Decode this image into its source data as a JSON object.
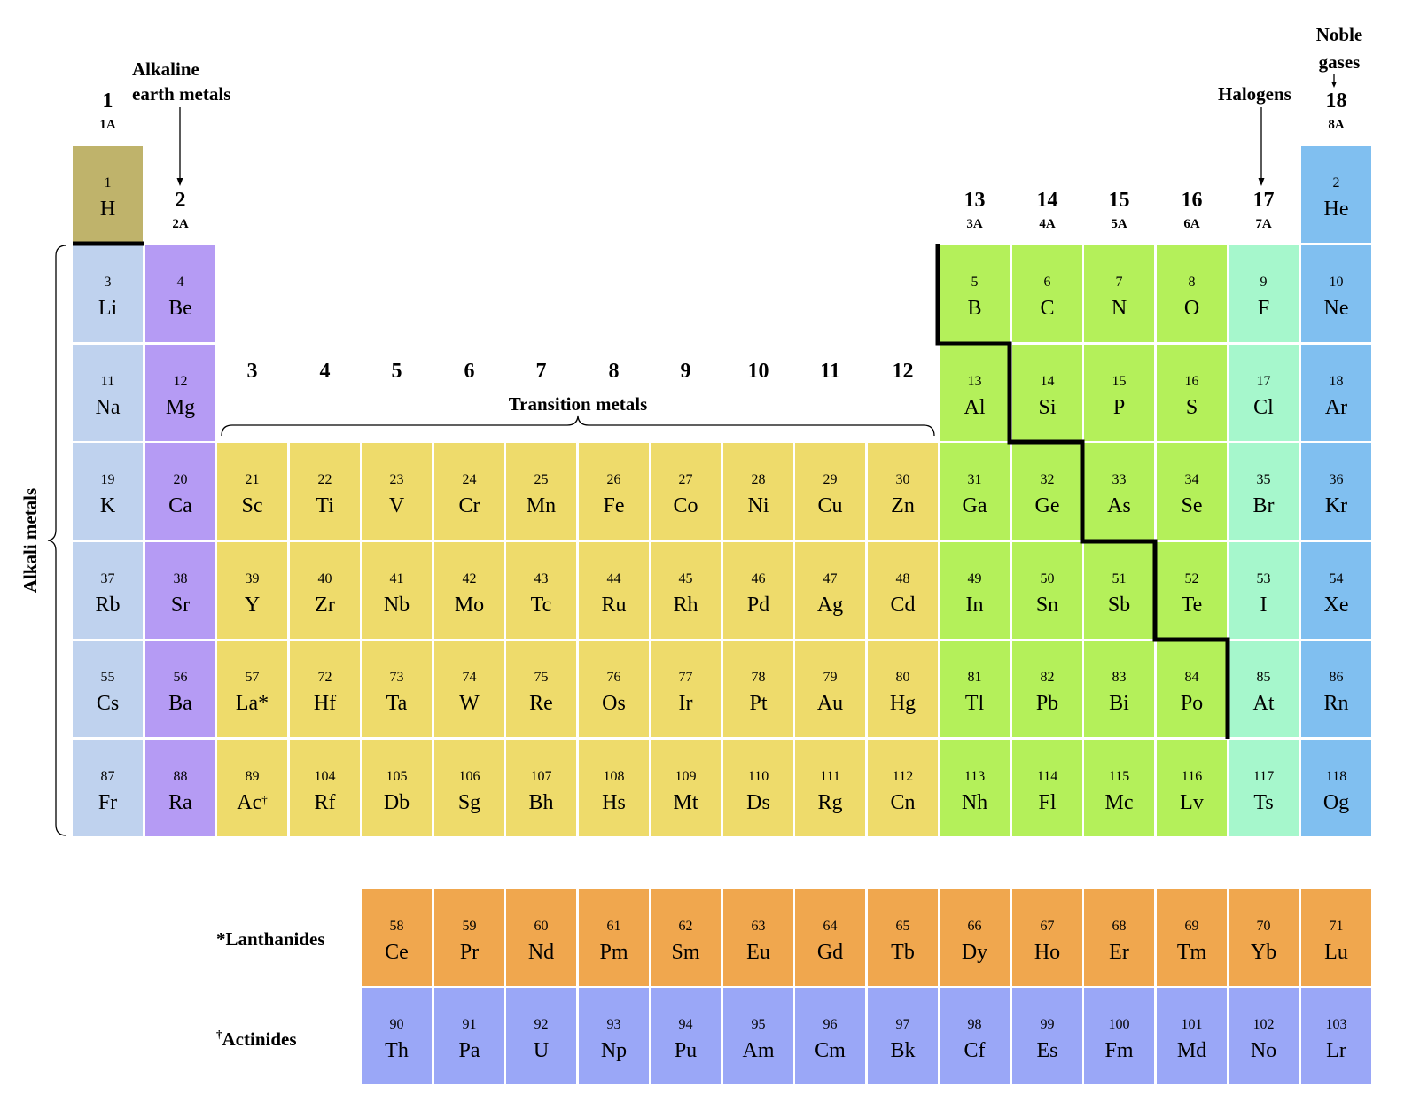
{
  "colors": {
    "hydrogen": "#bfb36b",
    "alkali_metals": "#bfd2ee",
    "alkaline_earth_metals": "#b59bf4",
    "transition_metals": "#eedb6b",
    "main_group": "#b4f05a",
    "halogens": "#a6f7cc",
    "noble_gases": "#80bff0",
    "lanthanides": "#f0a74e",
    "actinides": "#9aa7f7"
  },
  "labels": {
    "alkaline_earth": [
      "Alkaline",
      "earth metals"
    ],
    "noble_gases": [
      "Noble",
      "gases"
    ],
    "halogens": "Halogens",
    "transition_metals": "Transition metals",
    "alkali_metals": "Alkali metals",
    "lanthanides": "*Lanthanides",
    "actinides_mark": "†",
    "actinides": "Actinides"
  },
  "group_headers": [
    {
      "group": 1,
      "number": "1",
      "subtitle": "1A"
    },
    {
      "group": 2,
      "number": "2",
      "subtitle": "2A"
    },
    {
      "group": 3,
      "number": "3",
      "subtitle": ""
    },
    {
      "group": 4,
      "number": "4",
      "subtitle": ""
    },
    {
      "group": 5,
      "number": "5",
      "subtitle": ""
    },
    {
      "group": 6,
      "number": "6",
      "subtitle": ""
    },
    {
      "group": 7,
      "number": "7",
      "subtitle": ""
    },
    {
      "group": 8,
      "number": "8",
      "subtitle": ""
    },
    {
      "group": 9,
      "number": "9",
      "subtitle": ""
    },
    {
      "group": 10,
      "number": "10",
      "subtitle": ""
    },
    {
      "group": 11,
      "number": "11",
      "subtitle": ""
    },
    {
      "group": 12,
      "number": "12",
      "subtitle": ""
    },
    {
      "group": 13,
      "number": "13",
      "subtitle": "3A"
    },
    {
      "group": 14,
      "number": "14",
      "subtitle": "4A"
    },
    {
      "group": 15,
      "number": "15",
      "subtitle": "5A"
    },
    {
      "group": 16,
      "number": "16",
      "subtitle": "6A"
    },
    {
      "group": 17,
      "number": "17",
      "subtitle": "7A"
    },
    {
      "group": 18,
      "number": "18",
      "subtitle": "8A"
    }
  ],
  "elements": [
    {
      "num": "1",
      "sym": "H",
      "period": 1,
      "group": 1,
      "cat": "hydrogen"
    },
    {
      "num": "2",
      "sym": "He",
      "period": 1,
      "group": 18,
      "cat": "noble_gases"
    },
    {
      "num": "3",
      "sym": "Li",
      "period": 2,
      "group": 1,
      "cat": "alkali_metals"
    },
    {
      "num": "4",
      "sym": "Be",
      "period": 2,
      "group": 2,
      "cat": "alkaline_earth_metals"
    },
    {
      "num": "5",
      "sym": "B",
      "period": 2,
      "group": 13,
      "cat": "main_group"
    },
    {
      "num": "6",
      "sym": "C",
      "period": 2,
      "group": 14,
      "cat": "main_group"
    },
    {
      "num": "7",
      "sym": "N",
      "period": 2,
      "group": 15,
      "cat": "main_group"
    },
    {
      "num": "8",
      "sym": "O",
      "period": 2,
      "group": 16,
      "cat": "main_group"
    },
    {
      "num": "9",
      "sym": "F",
      "period": 2,
      "group": 17,
      "cat": "halogens"
    },
    {
      "num": "10",
      "sym": "Ne",
      "period": 2,
      "group": 18,
      "cat": "noble_gases"
    },
    {
      "num": "11",
      "sym": "Na",
      "period": 3,
      "group": 1,
      "cat": "alkali_metals"
    },
    {
      "num": "12",
      "sym": "Mg",
      "period": 3,
      "group": 2,
      "cat": "alkaline_earth_metals"
    },
    {
      "num": "13",
      "sym": "Al",
      "period": 3,
      "group": 13,
      "cat": "main_group"
    },
    {
      "num": "14",
      "sym": "Si",
      "period": 3,
      "group": 14,
      "cat": "main_group"
    },
    {
      "num": "15",
      "sym": "P",
      "period": 3,
      "group": 15,
      "cat": "main_group"
    },
    {
      "num": "16",
      "sym": "S",
      "period": 3,
      "group": 16,
      "cat": "main_group"
    },
    {
      "num": "17",
      "sym": "Cl",
      "period": 3,
      "group": 17,
      "cat": "halogens"
    },
    {
      "num": "18",
      "sym": "Ar",
      "period": 3,
      "group": 18,
      "cat": "noble_gases"
    },
    {
      "num": "19",
      "sym": "K",
      "period": 4,
      "group": 1,
      "cat": "alkali_metals"
    },
    {
      "num": "20",
      "sym": "Ca",
      "period": 4,
      "group": 2,
      "cat": "alkaline_earth_metals"
    },
    {
      "num": "21",
      "sym": "Sc",
      "period": 4,
      "group": 3,
      "cat": "transition_metals"
    },
    {
      "num": "22",
      "sym": "Ti",
      "period": 4,
      "group": 4,
      "cat": "transition_metals"
    },
    {
      "num": "23",
      "sym": "V",
      "period": 4,
      "group": 5,
      "cat": "transition_metals"
    },
    {
      "num": "24",
      "sym": "Cr",
      "period": 4,
      "group": 6,
      "cat": "transition_metals"
    },
    {
      "num": "25",
      "sym": "Mn",
      "period": 4,
      "group": 7,
      "cat": "transition_metals"
    },
    {
      "num": "26",
      "sym": "Fe",
      "period": 4,
      "group": 8,
      "cat": "transition_metals"
    },
    {
      "num": "27",
      "sym": "Co",
      "period": 4,
      "group": 9,
      "cat": "transition_metals"
    },
    {
      "num": "28",
      "sym": "Ni",
      "period": 4,
      "group": 10,
      "cat": "transition_metals"
    },
    {
      "num": "29",
      "sym": "Cu",
      "period": 4,
      "group": 11,
      "cat": "transition_metals"
    },
    {
      "num": "30",
      "sym": "Zn",
      "period": 4,
      "group": 12,
      "cat": "transition_metals"
    },
    {
      "num": "31",
      "sym": "Ga",
      "period": 4,
      "group": 13,
      "cat": "main_group"
    },
    {
      "num": "32",
      "sym": "Ge",
      "period": 4,
      "group": 14,
      "cat": "main_group"
    },
    {
      "num": "33",
      "sym": "As",
      "period": 4,
      "group": 15,
      "cat": "main_group"
    },
    {
      "num": "34",
      "sym": "Se",
      "period": 4,
      "group": 16,
      "cat": "main_group"
    },
    {
      "num": "35",
      "sym": "Br",
      "period": 4,
      "group": 17,
      "cat": "halogens"
    },
    {
      "num": "36",
      "sym": "Kr",
      "period": 4,
      "group": 18,
      "cat": "noble_gases"
    },
    {
      "num": "37",
      "sym": "Rb",
      "period": 5,
      "group": 1,
      "cat": "alkali_metals"
    },
    {
      "num": "38",
      "sym": "Sr",
      "period": 5,
      "group": 2,
      "cat": "alkaline_earth_metals"
    },
    {
      "num": "39",
      "sym": "Y",
      "period": 5,
      "group": 3,
      "cat": "transition_metals"
    },
    {
      "num": "40",
      "sym": "Zr",
      "period": 5,
      "group": 4,
      "cat": "transition_metals"
    },
    {
      "num": "41",
      "sym": "Nb",
      "period": 5,
      "group": 5,
      "cat": "transition_metals"
    },
    {
      "num": "42",
      "sym": "Mo",
      "period": 5,
      "group": 6,
      "cat": "transition_metals"
    },
    {
      "num": "43",
      "sym": "Tc",
      "period": 5,
      "group": 7,
      "cat": "transition_metals"
    },
    {
      "num": "44",
      "sym": "Ru",
      "period": 5,
      "group": 8,
      "cat": "transition_metals"
    },
    {
      "num": "45",
      "sym": "Rh",
      "period": 5,
      "group": 9,
      "cat": "transition_metals"
    },
    {
      "num": "46",
      "sym": "Pd",
      "period": 5,
      "group": 10,
      "cat": "transition_metals"
    },
    {
      "num": "47",
      "sym": "Ag",
      "period": 5,
      "group": 11,
      "cat": "transition_metals"
    },
    {
      "num": "48",
      "sym": "Cd",
      "period": 5,
      "group": 12,
      "cat": "transition_metals"
    },
    {
      "num": "49",
      "sym": "In",
      "period": 5,
      "group": 13,
      "cat": "main_group"
    },
    {
      "num": "50",
      "sym": "Sn",
      "period": 5,
      "group": 14,
      "cat": "main_group"
    },
    {
      "num": "51",
      "sym": "Sb",
      "period": 5,
      "group": 15,
      "cat": "main_group"
    },
    {
      "num": "52",
      "sym": "Te",
      "period": 5,
      "group": 16,
      "cat": "main_group"
    },
    {
      "num": "53",
      "sym": "I",
      "period": 5,
      "group": 17,
      "cat": "halogens"
    },
    {
      "num": "54",
      "sym": "Xe",
      "period": 5,
      "group": 18,
      "cat": "noble_gases"
    },
    {
      "num": "55",
      "sym": "Cs",
      "period": 6,
      "group": 1,
      "cat": "alkali_metals"
    },
    {
      "num": "56",
      "sym": "Ba",
      "period": 6,
      "group": 2,
      "cat": "alkaline_earth_metals"
    },
    {
      "num": "57",
      "sym": "La*",
      "period": 6,
      "group": 3,
      "cat": "transition_metals"
    },
    {
      "num": "72",
      "sym": "Hf",
      "period": 6,
      "group": 4,
      "cat": "transition_metals"
    },
    {
      "num": "73",
      "sym": "Ta",
      "period": 6,
      "group": 5,
      "cat": "transition_metals"
    },
    {
      "num": "74",
      "sym": "W",
      "period": 6,
      "group": 6,
      "cat": "transition_metals"
    },
    {
      "num": "75",
      "sym": "Re",
      "period": 6,
      "group": 7,
      "cat": "transition_metals"
    },
    {
      "num": "76",
      "sym": "Os",
      "period": 6,
      "group": 8,
      "cat": "transition_metals"
    },
    {
      "num": "77",
      "sym": "Ir",
      "period": 6,
      "group": 9,
      "cat": "transition_metals"
    },
    {
      "num": "78",
      "sym": "Pt",
      "period": 6,
      "group": 10,
      "cat": "transition_metals"
    },
    {
      "num": "79",
      "sym": "Au",
      "period": 6,
      "group": 11,
      "cat": "transition_metals"
    },
    {
      "num": "80",
      "sym": "Hg",
      "period": 6,
      "group": 12,
      "cat": "transition_metals"
    },
    {
      "num": "81",
      "sym": "Tl",
      "period": 6,
      "group": 13,
      "cat": "main_group"
    },
    {
      "num": "82",
      "sym": "Pb",
      "period": 6,
      "group": 14,
      "cat": "main_group"
    },
    {
      "num": "83",
      "sym": "Bi",
      "period": 6,
      "group": 15,
      "cat": "main_group"
    },
    {
      "num": "84",
      "sym": "Po",
      "period": 6,
      "group": 16,
      "cat": "main_group"
    },
    {
      "num": "85",
      "sym": "At",
      "period": 6,
      "group": 17,
      "cat": "halogens"
    },
    {
      "num": "86",
      "sym": "Rn",
      "period": 6,
      "group": 18,
      "cat": "noble_gases"
    },
    {
      "num": "87",
      "sym": "Fr",
      "period": 7,
      "group": 1,
      "cat": "alkali_metals"
    },
    {
      "num": "88",
      "sym": "Ra",
      "period": 7,
      "group": 2,
      "cat": "alkaline_earth_metals"
    },
    {
      "num": "89",
      "sym": "Ac",
      "sup": "†",
      "period": 7,
      "group": 3,
      "cat": "transition_metals"
    },
    {
      "num": "104",
      "sym": "Rf",
      "period": 7,
      "group": 4,
      "cat": "transition_metals"
    },
    {
      "num": "105",
      "sym": "Db",
      "period": 7,
      "group": 5,
      "cat": "transition_metals"
    },
    {
      "num": "106",
      "sym": "Sg",
      "period": 7,
      "group": 6,
      "cat": "transition_metals"
    },
    {
      "num": "107",
      "sym": "Bh",
      "period": 7,
      "group": 7,
      "cat": "transition_metals"
    },
    {
      "num": "108",
      "sym": "Hs",
      "period": 7,
      "group": 8,
      "cat": "transition_metals"
    },
    {
      "num": "109",
      "sym": "Mt",
      "period": 7,
      "group": 9,
      "cat": "transition_metals"
    },
    {
      "num": "110",
      "sym": "Ds",
      "period": 7,
      "group": 10,
      "cat": "transition_metals"
    },
    {
      "num": "111",
      "sym": "Rg",
      "period": 7,
      "group": 11,
      "cat": "transition_metals"
    },
    {
      "num": "112",
      "sym": "Cn",
      "period": 7,
      "group": 12,
      "cat": "transition_metals"
    },
    {
      "num": "113",
      "sym": "Nh",
      "period": 7,
      "group": 13,
      "cat": "main_group"
    },
    {
      "num": "114",
      "sym": "Fl",
      "period": 7,
      "group": 14,
      "cat": "main_group"
    },
    {
      "num": "115",
      "sym": "Mc",
      "period": 7,
      "group": 15,
      "cat": "main_group"
    },
    {
      "num": "116",
      "sym": "Lv",
      "period": 7,
      "group": 16,
      "cat": "main_group"
    },
    {
      "num": "117",
      "sym": "Ts",
      "period": 7,
      "group": 17,
      "cat": "halogens"
    },
    {
      "num": "118",
      "sym": "Og",
      "period": 7,
      "group": 18,
      "cat": "noble_gases"
    }
  ],
  "lanthanides": [
    {
      "num": "58",
      "sym": "Ce"
    },
    {
      "num": "59",
      "sym": "Pr"
    },
    {
      "num": "60",
      "sym": "Nd"
    },
    {
      "num": "61",
      "sym": "Pm"
    },
    {
      "num": "62",
      "sym": "Sm"
    },
    {
      "num": "63",
      "sym": "Eu"
    },
    {
      "num": "64",
      "sym": "Gd"
    },
    {
      "num": "65",
      "sym": "Tb"
    },
    {
      "num": "66",
      "sym": "Dy"
    },
    {
      "num": "67",
      "sym": "Ho"
    },
    {
      "num": "68",
      "sym": "Er"
    },
    {
      "num": "69",
      "sym": "Tm"
    },
    {
      "num": "70",
      "sym": "Yb"
    },
    {
      "num": "71",
      "sym": "Lu"
    }
  ],
  "actinides": [
    {
      "num": "90",
      "sym": "Th"
    },
    {
      "num": "91",
      "sym": "Pa"
    },
    {
      "num": "92",
      "sym": "U"
    },
    {
      "num": "93",
      "sym": "Np"
    },
    {
      "num": "94",
      "sym": "Pu"
    },
    {
      "num": "95",
      "sym": "Am"
    },
    {
      "num": "96",
      "sym": "Cm"
    },
    {
      "num": "97",
      "sym": "Bk"
    },
    {
      "num": "98",
      "sym": "Cf"
    },
    {
      "num": "99",
      "sym": "Es"
    },
    {
      "num": "100",
      "sym": "Fm"
    },
    {
      "num": "101",
      "sym": "Md"
    },
    {
      "num": "102",
      "sym": "No"
    },
    {
      "num": "103",
      "sym": "Lr"
    }
  ]
}
